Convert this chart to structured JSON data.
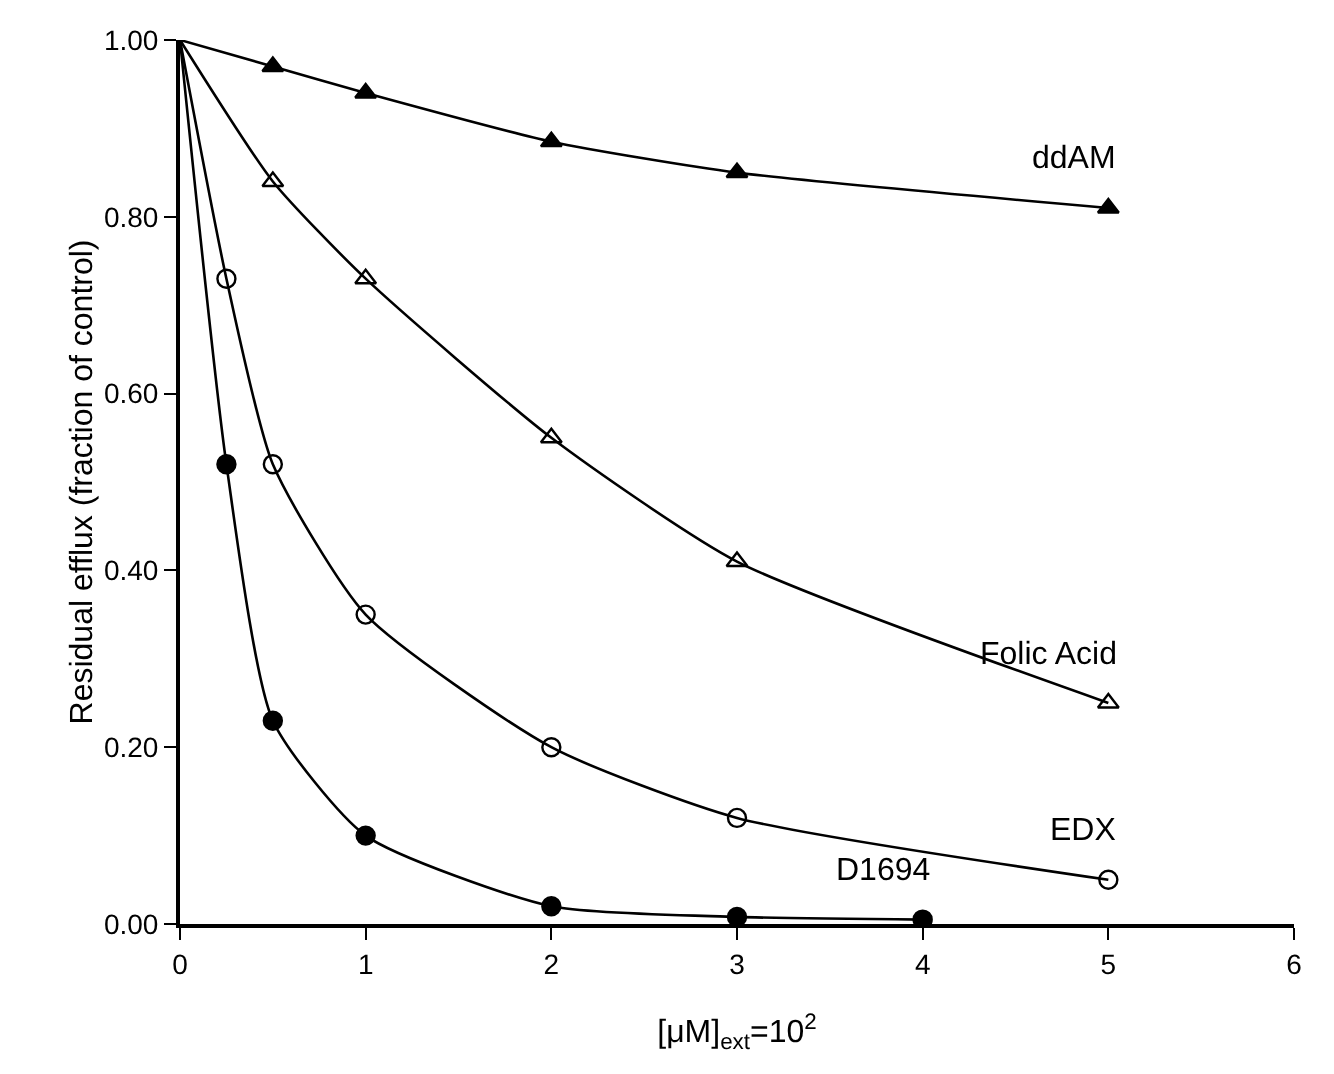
{
  "chart_data": {
    "type": "scatter",
    "xlabel": "[μM]$_{ext}$=10$^{2}$",
    "ylabel": "Residual efflux (fraction of control)",
    "xlim": [
      0,
      6
    ],
    "xticks": [
      0,
      1,
      2,
      3,
      4,
      5,
      6
    ],
    "ylim": [
      0,
      1
    ],
    "yticks": [
      {
        "value": 0,
        "label": "0.00"
      },
      {
        "value": 0.2,
        "label": "0.20"
      },
      {
        "value": 0.4,
        "label": "0.40"
      },
      {
        "value": 0.6,
        "label": "0.60"
      },
      {
        "value": 0.8,
        "label": "0.80"
      },
      {
        "value": 1,
        "label": "1.00"
      }
    ],
    "grid": false,
    "legend": false,
    "series": [
      {
        "type": "line",
        "marker": "none",
        "color": "#000000",
        "x": [
          0,
          0.5,
          1,
          2,
          3,
          5
        ],
        "values": [
          1,
          0.97,
          0.94,
          0.885,
          0.85,
          0.81
        ]
      },
      {
        "type": "line",
        "marker": "none",
        "color": "#000000",
        "x": [
          0,
          0.5,
          1,
          2,
          3,
          5
        ],
        "values": [
          1,
          0.84,
          0.73,
          0.55,
          0.41,
          0.25
        ]
      },
      {
        "type": "line",
        "marker": "none",
        "color": "#000000",
        "x": [
          0,
          0.25,
          0.5,
          1,
          2,
          3,
          5
        ],
        "values": [
          1,
          0.73,
          0.52,
          0.35,
          0.2,
          0.12,
          0.05
        ]
      },
      {
        "type": "line",
        "marker": "none",
        "color": "#000000",
        "x": [
          0,
          0.25,
          0.5,
          1,
          2,
          3,
          4
        ],
        "values": [
          1,
          0.52,
          0.23,
          0.1,
          0.02,
          0.008,
          0.005
        ]
      },
      {
        "name": "ddAM",
        "marker": "triangle",
        "color": "#000000",
        "x": [
          0.5,
          1,
          2,
          3,
          5
        ],
        "values": [
          0.97,
          0.94,
          0.885,
          0.85,
          0.81
        ]
      },
      {
        "name": "Folic Acid",
        "marker": "triangle-open",
        "color": "#000000",
        "x": [
          0.5,
          1,
          2,
          3,
          5
        ],
        "values": [
          0.84,
          0.73,
          0.55,
          0.41,
          0.25
        ]
      },
      {
        "name": "EDX",
        "marker": "circle-open",
        "color": "#000000",
        "x": [
          0.25,
          0.5,
          1,
          2,
          3,
          5
        ],
        "values": [
          0.73,
          0.52,
          0.35,
          0.2,
          0.12,
          0.05
        ]
      },
      {
        "name": "D1694",
        "marker": "circle",
        "color": "#000000",
        "x": [
          0.25,
          0.5,
          1,
          2,
          3,
          4
        ],
        "values": [
          0.52,
          0.23,
          0.1,
          0.02,
          0.008,
          0.005
        ]
      }
    ]
  }
}
